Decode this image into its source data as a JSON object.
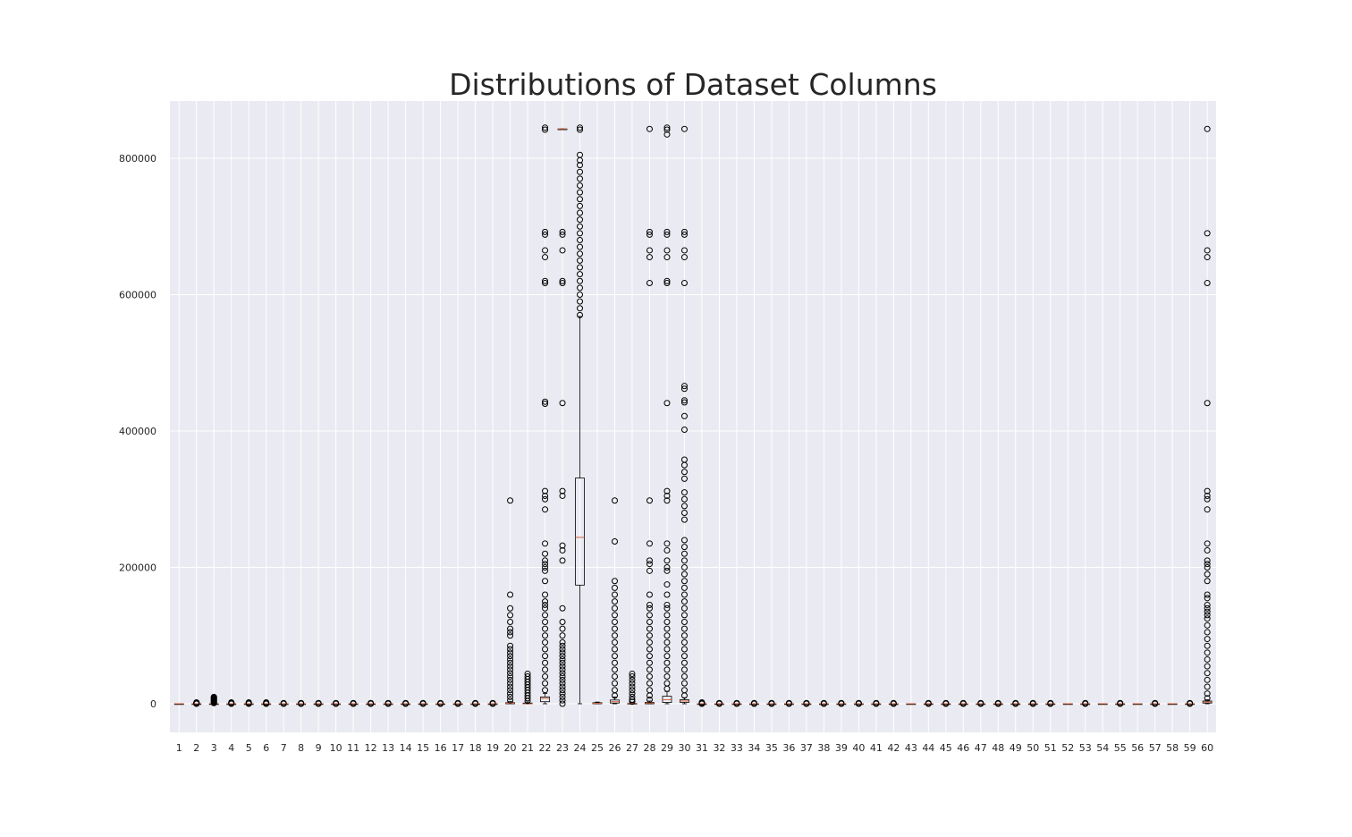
{
  "chart_data": {
    "type": "box",
    "title": "Distributions of Dataset Columns",
    "xlabel": "",
    "ylabel": "",
    "ylim": [
      -42000,
      882000
    ],
    "grid": true,
    "yticks": [
      0,
      200000,
      400000,
      600000,
      800000
    ],
    "categories": [
      "1",
      "2",
      "3",
      "4",
      "5",
      "6",
      "7",
      "8",
      "9",
      "10",
      "11",
      "12",
      "13",
      "14",
      "15",
      "16",
      "17",
      "18",
      "19",
      "20",
      "21",
      "22",
      "23",
      "24",
      "25",
      "26",
      "27",
      "28",
      "29",
      "30",
      "31",
      "32",
      "33",
      "34",
      "35",
      "36",
      "37",
      "38",
      "39",
      "40",
      "41",
      "42",
      "43",
      "44",
      "45",
      "46",
      "47",
      "48",
      "49",
      "50",
      "51",
      "52",
      "53",
      "54",
      "55",
      "56",
      "57",
      "58",
      "59",
      "60"
    ],
    "colors": {
      "background": "#eaeaf2",
      "grid": "#ffffff",
      "box": "#000000",
      "median": "#d65f3a",
      "text": "#262626"
    },
    "boxes": [
      {
        "label": "1",
        "q1": 0,
        "median": 0,
        "q3": 0,
        "whislo": 0,
        "whishi": 0,
        "fliers": []
      },
      {
        "label": "2",
        "q1": 0,
        "median": 0,
        "q3": 0,
        "whislo": 0,
        "whishi": 0,
        "fliers": [
          0,
          500,
          1000,
          1500,
          2000
        ]
      },
      {
        "label": "3",
        "q1": 0,
        "median": 0,
        "q3": 0,
        "whislo": 0,
        "whishi": 0,
        "fliers": [
          1000,
          2000,
          3000,
          4000,
          5000,
          6000,
          7000,
          8000,
          9000,
          10000
        ]
      },
      {
        "label": "4",
        "q1": 0,
        "median": 0,
        "q3": 0,
        "whislo": 0,
        "whishi": 0,
        "fliers": [
          0,
          1000,
          2000
        ]
      },
      {
        "label": "5",
        "q1": 0,
        "median": 0,
        "q3": 0,
        "whislo": 0,
        "whishi": 0,
        "fliers": [
          0,
          1000,
          2000
        ]
      },
      {
        "label": "6",
        "q1": 0,
        "median": 0,
        "q3": 0,
        "whislo": 0,
        "whishi": 0,
        "fliers": [
          0,
          1000,
          2000
        ]
      },
      {
        "label": "7",
        "q1": 0,
        "median": 0,
        "q3": 0,
        "whislo": 0,
        "whishi": 0,
        "fliers": [
          0,
          1000
        ]
      },
      {
        "label": "8",
        "q1": 0,
        "median": 0,
        "q3": 0,
        "whislo": 0,
        "whishi": 0,
        "fliers": [
          0,
          1000
        ]
      },
      {
        "label": "9",
        "q1": 0,
        "median": 0,
        "q3": 0,
        "whislo": 0,
        "whishi": 0,
        "fliers": [
          0,
          1000
        ]
      },
      {
        "label": "10",
        "q1": 0,
        "median": 0,
        "q3": 0,
        "whislo": 0,
        "whishi": 0,
        "fliers": [
          0,
          1000
        ]
      },
      {
        "label": "11",
        "q1": 0,
        "median": 0,
        "q3": 0,
        "whislo": 0,
        "whishi": 0,
        "fliers": [
          0,
          1000
        ]
      },
      {
        "label": "12",
        "q1": 0,
        "median": 0,
        "q3": 0,
        "whislo": 0,
        "whishi": 0,
        "fliers": [
          0,
          1000
        ]
      },
      {
        "label": "13",
        "q1": 0,
        "median": 0,
        "q3": 0,
        "whislo": 0,
        "whishi": 0,
        "fliers": [
          0,
          1000
        ]
      },
      {
        "label": "14",
        "q1": 0,
        "median": 0,
        "q3": 0,
        "whislo": 0,
        "whishi": 0,
        "fliers": [
          0,
          1000
        ]
      },
      {
        "label": "15",
        "q1": 0,
        "median": 0,
        "q3": 0,
        "whislo": 0,
        "whishi": 0,
        "fliers": [
          0,
          1000
        ]
      },
      {
        "label": "16",
        "q1": 0,
        "median": 0,
        "q3": 0,
        "whislo": 0,
        "whishi": 0,
        "fliers": [
          0,
          1000
        ]
      },
      {
        "label": "17",
        "q1": 0,
        "median": 0,
        "q3": 0,
        "whislo": 0,
        "whishi": 0,
        "fliers": [
          0,
          1000
        ]
      },
      {
        "label": "18",
        "q1": 0,
        "median": 0,
        "q3": 0,
        "whislo": 0,
        "whishi": 0,
        "fliers": [
          0,
          1000
        ]
      },
      {
        "label": "19",
        "q1": 0,
        "median": 0,
        "q3": 0,
        "whislo": 0,
        "whishi": 0,
        "fliers": [
          0,
          1000
        ]
      },
      {
        "label": "20",
        "q1": 0,
        "median": 500,
        "q3": 1500,
        "whislo": 0,
        "whishi": 3500,
        "fliers": [
          5000,
          10000,
          15000,
          20000,
          25000,
          30000,
          35000,
          40000,
          45000,
          50000,
          55000,
          60000,
          65000,
          70000,
          75000,
          80000,
          85000,
          100000,
          105000,
          110000,
          120000,
          130000,
          140000,
          160000,
          298000
        ]
      },
      {
        "label": "21",
        "q1": 0,
        "median": 0,
        "q3": 1000,
        "whislo": 0,
        "whishi": 2500,
        "fliers": [
          4000,
          8000,
          12000,
          16000,
          20000,
          24000,
          28000,
          32000,
          36000,
          40000,
          44000
        ]
      },
      {
        "label": "22",
        "q1": 3000,
        "median": 8000,
        "q3": 10000,
        "whislo": 0,
        "whishi": 15000,
        "fliers": [
          20000,
          30000,
          40000,
          50000,
          60000,
          70000,
          80000,
          90000,
          100000,
          110000,
          120000,
          130000,
          140000,
          145000,
          150000,
          160000,
          180000,
          195000,
          200000,
          205000,
          210000,
          220000,
          235000,
          285000,
          300000,
          305000,
          312000,
          440000,
          443000,
          617000,
          620000,
          655000,
          665000,
          688000,
          692000,
          842000,
          845000
        ]
      },
      {
        "label": "23",
        "q1": 843000,
        "median": 843000,
        "q3": 843000,
        "whislo": 843000,
        "whishi": 843000,
        "fliers": [
          0,
          5000,
          10000,
          15000,
          20000,
          25000,
          30000,
          35000,
          40000,
          45000,
          50000,
          55000,
          60000,
          65000,
          70000,
          75000,
          80000,
          85000,
          90000,
          100000,
          110000,
          120000,
          140000,
          210000,
          225000,
          232000,
          305000,
          312000,
          441000,
          617000,
          620000,
          665000,
          688000,
          692000
        ]
      },
      {
        "label": "24",
        "q1": 174000,
        "median": 244000,
        "q3": 331000,
        "whislo": 0,
        "whishi": 568000,
        "fliers": [
          570000,
          580000,
          590000,
          600000,
          610000,
          620000,
          630000,
          640000,
          650000,
          660000,
          670000,
          680000,
          690000,
          700000,
          710000,
          720000,
          730000,
          740000,
          750000,
          760000,
          770000,
          780000,
          790000,
          797000,
          805000,
          842000,
          845000
        ]
      },
      {
        "label": "25",
        "q1": 0,
        "median": 500,
        "q3": 1500,
        "whislo": 0,
        "whishi": 2500,
        "fliers": []
      },
      {
        "label": "26",
        "q1": 1000,
        "median": 3000,
        "q3": 5500,
        "whislo": 0,
        "whishi": 10000,
        "fliers": [
          12000,
          20000,
          30000,
          40000,
          50000,
          60000,
          70000,
          80000,
          90000,
          100000,
          110000,
          120000,
          130000,
          140000,
          150000,
          160000,
          170000,
          180000,
          238000,
          298000
        ]
      },
      {
        "label": "27",
        "q1": 0,
        "median": 0,
        "q3": 500,
        "whislo": 0,
        "whishi": 1500,
        "fliers": [
          3000,
          6000,
          10000,
          15000,
          20000,
          25000,
          30000,
          35000,
          40000,
          44000
        ]
      },
      {
        "label": "28",
        "q1": 0,
        "median": 1000,
        "q3": 2000,
        "whislo": 0,
        "whishi": 4000,
        "fliers": [
          6000,
          12000,
          20000,
          30000,
          40000,
          50000,
          60000,
          70000,
          80000,
          90000,
          100000,
          110000,
          120000,
          130000,
          140000,
          145000,
          160000,
          195000,
          205000,
          210000,
          235000,
          298000,
          617000,
          655000,
          665000,
          688000,
          692000,
          843000
        ]
      },
      {
        "label": "29",
        "q1": 2000,
        "median": 6000,
        "q3": 11000,
        "whislo": 0,
        "whishi": 18000,
        "fliers": [
          22000,
          30000,
          40000,
          50000,
          60000,
          70000,
          80000,
          90000,
          100000,
          110000,
          120000,
          130000,
          140000,
          145000,
          160000,
          175000,
          195000,
          200000,
          210000,
          225000,
          235000,
          298000,
          305000,
          312000,
          441000,
          617000,
          620000,
          655000,
          665000,
          688000,
          692000,
          835000,
          842000,
          845000
        ]
      },
      {
        "label": "30",
        "q1": 2000,
        "median": 4000,
        "q3": 6000,
        "whislo": 0,
        "whishi": 9000,
        "fliers": [
          12000,
          20000,
          30000,
          40000,
          50000,
          60000,
          70000,
          80000,
          90000,
          100000,
          110000,
          120000,
          130000,
          140000,
          150000,
          160000,
          170000,
          180000,
          190000,
          200000,
          210000,
          220000,
          230000,
          240000,
          270000,
          280000,
          290000,
          300000,
          310000,
          330000,
          340000,
          350000,
          358000,
          402000,
          422000,
          442000,
          445000,
          462000,
          466000,
          617000,
          655000,
          665000,
          688000,
          692000,
          843000
        ]
      },
      {
        "label": "31",
        "q1": 0,
        "median": 0,
        "q3": 0,
        "whislo": 0,
        "whishi": 0,
        "fliers": [
          0,
          1000,
          2000
        ]
      },
      {
        "label": "32",
        "q1": 0,
        "median": 0,
        "q3": 0,
        "whislo": 0,
        "whishi": 0,
        "fliers": [
          0,
          1000
        ]
      },
      {
        "label": "33",
        "q1": 0,
        "median": 0,
        "q3": 0,
        "whislo": 0,
        "whishi": 0,
        "fliers": [
          0,
          1000
        ]
      },
      {
        "label": "34",
        "q1": 0,
        "median": 0,
        "q3": 0,
        "whislo": 0,
        "whishi": 0,
        "fliers": [
          0,
          1000
        ]
      },
      {
        "label": "35",
        "q1": 0,
        "median": 0,
        "q3": 0,
        "whislo": 0,
        "whishi": 0,
        "fliers": [
          0,
          1000
        ]
      },
      {
        "label": "36",
        "q1": 0,
        "median": 0,
        "q3": 0,
        "whislo": 0,
        "whishi": 0,
        "fliers": [
          0,
          1000
        ]
      },
      {
        "label": "37",
        "q1": 0,
        "median": 0,
        "q3": 0,
        "whislo": 0,
        "whishi": 0,
        "fliers": [
          0,
          1000
        ]
      },
      {
        "label": "38",
        "q1": 0,
        "median": 0,
        "q3": 0,
        "whislo": 0,
        "whishi": 0,
        "fliers": [
          0,
          1000
        ]
      },
      {
        "label": "39",
        "q1": 0,
        "median": 0,
        "q3": 0,
        "whislo": 0,
        "whishi": 0,
        "fliers": [
          0,
          1000
        ]
      },
      {
        "label": "40",
        "q1": 0,
        "median": 0,
        "q3": 0,
        "whislo": 0,
        "whishi": 0,
        "fliers": [
          0,
          1000
        ]
      },
      {
        "label": "41",
        "q1": 0,
        "median": 0,
        "q3": 0,
        "whislo": 0,
        "whishi": 0,
        "fliers": [
          0,
          1000
        ]
      },
      {
        "label": "42",
        "q1": 0,
        "median": 0,
        "q3": 0,
        "whislo": 0,
        "whishi": 0,
        "fliers": [
          0,
          1000
        ]
      },
      {
        "label": "43",
        "q1": 0,
        "median": 0,
        "q3": 0,
        "whislo": 0,
        "whishi": 0,
        "fliers": []
      },
      {
        "label": "44",
        "q1": 0,
        "median": 0,
        "q3": 0,
        "whislo": 0,
        "whishi": 0,
        "fliers": [
          0,
          1000
        ]
      },
      {
        "label": "45",
        "q1": 0,
        "median": 0,
        "q3": 0,
        "whislo": 0,
        "whishi": 0,
        "fliers": [
          0,
          1000
        ]
      },
      {
        "label": "46",
        "q1": 0,
        "median": 0,
        "q3": 0,
        "whislo": 0,
        "whishi": 0,
        "fliers": [
          0,
          1000
        ]
      },
      {
        "label": "47",
        "q1": 0,
        "median": 0,
        "q3": 0,
        "whislo": 0,
        "whishi": 0,
        "fliers": [
          0,
          1000
        ]
      },
      {
        "label": "48",
        "q1": 0,
        "median": 0,
        "q3": 0,
        "whislo": 0,
        "whishi": 0,
        "fliers": [
          0,
          1000
        ]
      },
      {
        "label": "49",
        "q1": 0,
        "median": 0,
        "q3": 0,
        "whislo": 0,
        "whishi": 0,
        "fliers": [
          0,
          1000
        ]
      },
      {
        "label": "50",
        "q1": 0,
        "median": 0,
        "q3": 0,
        "whislo": 0,
        "whishi": 0,
        "fliers": [
          0,
          1000
        ]
      },
      {
        "label": "51",
        "q1": 0,
        "median": 0,
        "q3": 0,
        "whislo": 0,
        "whishi": 0,
        "fliers": [
          0,
          1000
        ]
      },
      {
        "label": "52",
        "q1": 0,
        "median": 0,
        "q3": 0,
        "whislo": 0,
        "whishi": 0,
        "fliers": []
      },
      {
        "label": "53",
        "q1": 0,
        "median": 0,
        "q3": 0,
        "whislo": 0,
        "whishi": 0,
        "fliers": [
          0,
          1000
        ]
      },
      {
        "label": "54",
        "q1": 0,
        "median": 0,
        "q3": 0,
        "whislo": 0,
        "whishi": 0,
        "fliers": []
      },
      {
        "label": "55",
        "q1": 0,
        "median": 0,
        "q3": 0,
        "whislo": 0,
        "whishi": 0,
        "fliers": [
          0,
          1000
        ]
      },
      {
        "label": "56",
        "q1": 0,
        "median": 0,
        "q3": 0,
        "whislo": 0,
        "whishi": 0,
        "fliers": []
      },
      {
        "label": "57",
        "q1": 0,
        "median": 0,
        "q3": 0,
        "whislo": 0,
        "whishi": 0,
        "fliers": [
          0,
          1000
        ]
      },
      {
        "label": "58",
        "q1": 0,
        "median": 0,
        "q3": 0,
        "whislo": 0,
        "whishi": 0,
        "fliers": []
      },
      {
        "label": "59",
        "q1": 0,
        "median": 0,
        "q3": 0,
        "whislo": 0,
        "whishi": 0,
        "fliers": [
          0,
          1000
        ]
      },
      {
        "label": "60",
        "q1": 1000,
        "median": 2500,
        "q3": 4000,
        "whislo": 0,
        "whishi": 6000,
        "fliers": [
          8000,
          15000,
          25000,
          35000,
          45000,
          55000,
          65000,
          75000,
          85000,
          95000,
          105000,
          115000,
          125000,
          130000,
          135000,
          140000,
          145000,
          155000,
          160000,
          180000,
          190000,
          200000,
          205000,
          210000,
          225000,
          235000,
          285000,
          300000,
          305000,
          312000,
          441000,
          617000,
          655000,
          665000,
          690000,
          843000
        ]
      }
    ]
  }
}
